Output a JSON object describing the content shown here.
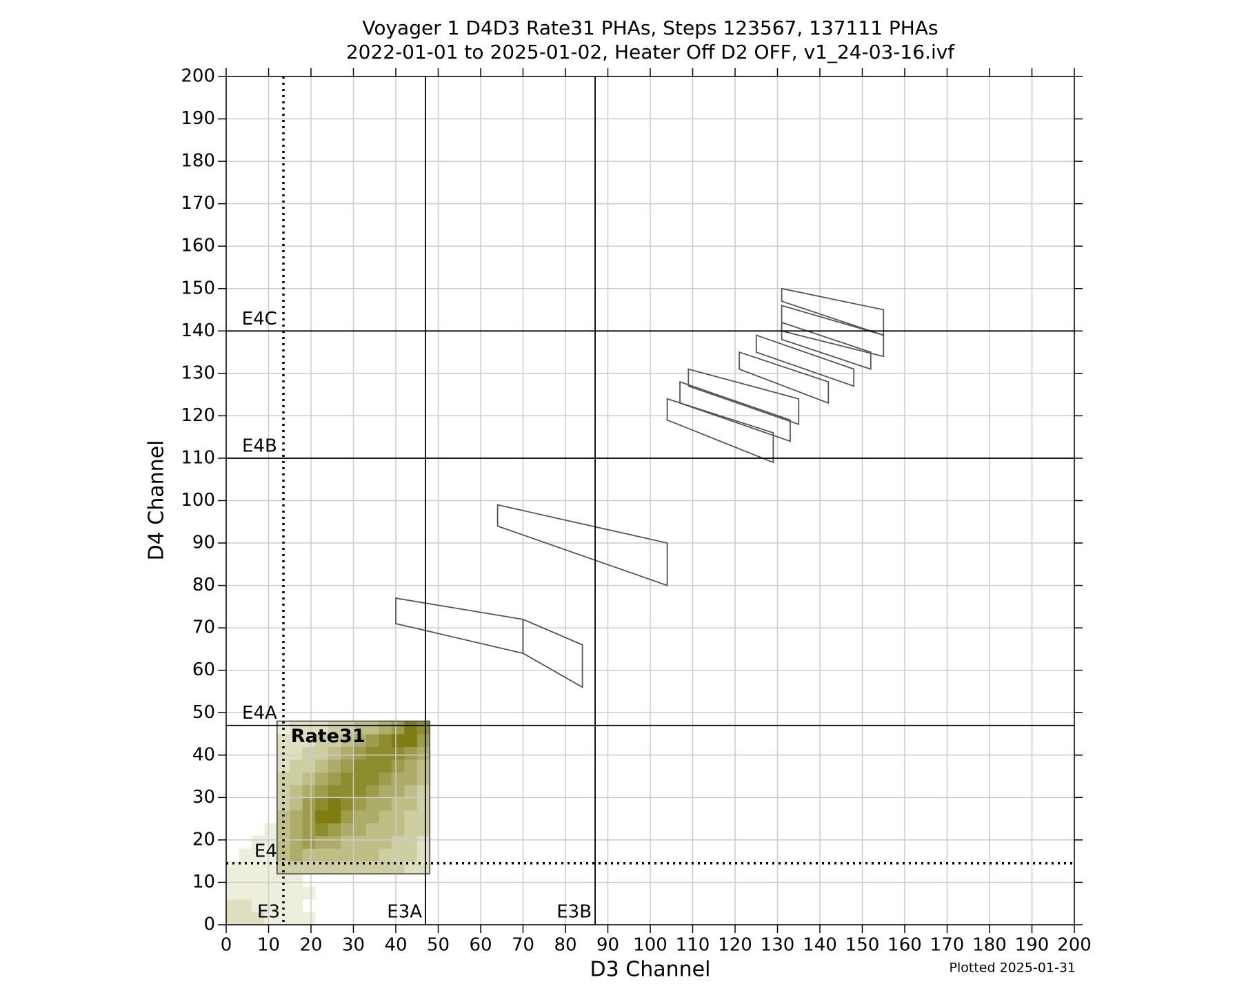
{
  "chart_data": {
    "type": "heatmap",
    "title": [
      "Voyager 1 D4D3 Rate31 PHAs, Steps 123567, 137111 PHAs",
      "2022-01-01 to 2025-01-02, Heater Off D2 OFF, v1_24-03-16.ivf"
    ],
    "x_label": "D3 Channel",
    "y_label": "D4 Channel",
    "footer": "Plotted 2025-01-31",
    "xlim": [
      0,
      200
    ],
    "ylim": [
      0,
      200
    ],
    "xticks": [
      0,
      10,
      20,
      30,
      40,
      50,
      60,
      70,
      80,
      90,
      100,
      110,
      120,
      130,
      140,
      150,
      160,
      170,
      180,
      190,
      200
    ],
    "yticks": [
      0,
      10,
      20,
      30,
      40,
      50,
      60,
      70,
      80,
      90,
      100,
      110,
      120,
      130,
      140,
      150,
      160,
      170,
      180,
      190,
      200
    ],
    "grid": true,
    "color_low": "#eeeedd",
    "color_high": "#7d7d12",
    "zlim": [
      0,
      8
    ],
    "x_bins": [
      0,
      3,
      6,
      9,
      12,
      15,
      18,
      21,
      24,
      27,
      30,
      33,
      36,
      39,
      42,
      45,
      48
    ],
    "y_bins": [
      0,
      3,
      6,
      9,
      12,
      15,
      18,
      21,
      24,
      27,
      30,
      33,
      36,
      39,
      42,
      45,
      48
    ],
    "counts": [
      [
        2,
        2,
        2,
        1,
        1,
        1,
        1,
        0,
        0,
        0,
        0,
        0,
        0,
        0,
        0,
        0
      ],
      [
        2,
        2,
        1,
        1,
        1,
        1,
        0,
        0,
        0,
        0,
        0,
        0,
        0,
        0,
        0,
        0
      ],
      [
        1,
        1,
        1,
        1,
        1,
        1,
        1,
        0,
        0,
        0,
        0,
        0,
        0,
        0,
        0,
        0
      ],
      [
        1,
        1,
        1,
        1,
        1,
        1,
        0,
        0,
        0,
        0,
        0,
        0,
        0,
        0,
        0,
        0
      ],
      [
        1,
        1,
        1,
        1,
        3,
        3,
        3,
        3,
        3,
        3,
        3,
        3,
        3,
        3,
        2,
        2
      ],
      [
        0,
        1,
        1,
        1,
        4,
        5,
        4,
        4,
        4,
        4,
        4,
        4,
        3,
        3,
        3,
        2
      ],
      [
        0,
        0,
        1,
        1,
        4,
        5,
        6,
        5,
        5,
        4,
        4,
        4,
        4,
        3,
        3,
        2
      ],
      [
        0,
        0,
        0,
        1,
        4,
        5,
        6,
        7,
        6,
        5,
        5,
        4,
        4,
        4,
        3,
        3
      ],
      [
        0,
        0,
        0,
        0,
        4,
        5,
        6,
        8,
        8,
        6,
        5,
        5,
        4,
        4,
        3,
        3
      ],
      [
        0,
        0,
        0,
        0,
        3,
        4,
        6,
        7,
        8,
        7,
        6,
        5,
        5,
        4,
        4,
        3
      ],
      [
        0,
        0,
        0,
        0,
        3,
        4,
        5,
        6,
        7,
        7,
        7,
        6,
        5,
        5,
        4,
        3
      ],
      [
        0,
        0,
        0,
        0,
        3,
        3,
        4,
        5,
        6,
        7,
        7,
        7,
        6,
        5,
        5,
        4
      ],
      [
        0,
        0,
        0,
        0,
        2,
        3,
        3,
        4,
        5,
        6,
        7,
        7,
        7,
        6,
        5,
        4
      ],
      [
        0,
        0,
        0,
        0,
        2,
        2,
        3,
        3,
        4,
        5,
        6,
        7,
        7,
        7,
        6,
        5
      ],
      [
        0,
        0,
        0,
        0,
        2,
        2,
        2,
        3,
        3,
        4,
        5,
        6,
        7,
        8,
        8,
        6
      ],
      [
        0,
        0,
        0,
        0,
        1,
        2,
        2,
        2,
        3,
        3,
        4,
        4,
        5,
        6,
        8,
        7
      ]
    ],
    "thresholds": [
      {
        "label": "E3",
        "axis": "x",
        "value": 13.5,
        "style": "dotted"
      },
      {
        "label": "E3A",
        "axis": "x",
        "value": 47,
        "style": "solid"
      },
      {
        "label": "E3B",
        "axis": "x",
        "value": 87,
        "style": "solid"
      },
      {
        "label": "E4",
        "axis": "y",
        "value": 14.5,
        "style": "dotted"
      },
      {
        "label": "E4A",
        "axis": "y",
        "value": 47,
        "style": "solid"
      },
      {
        "label": "E4B",
        "axis": "y",
        "value": 110,
        "style": "solid"
      },
      {
        "label": "E4C",
        "axis": "y",
        "value": 140,
        "style": "solid"
      }
    ],
    "rate_box": {
      "label": "Rate31",
      "x": [
        12,
        48
      ],
      "y": [
        12,
        48
      ]
    },
    "regions": [
      {
        "x": [
          40,
          70,
          70,
          40
        ],
        "y": [
          77,
          72,
          64,
          71
        ]
      },
      {
        "x": [
          70,
          84,
          84,
          70
        ],
        "y": [
          72,
          66,
          56,
          64
        ]
      },
      {
        "x": [
          64,
          104,
          104,
          64
        ],
        "y": [
          99,
          90,
          80,
          94
        ]
      },
      {
        "x": [
          104,
          129,
          129,
          104
        ],
        "y": [
          124,
          116,
          109,
          119
        ]
      },
      {
        "x": [
          107,
          133,
          133,
          107
        ],
        "y": [
          128,
          119,
          114,
          123
        ]
      },
      {
        "x": [
          109,
          135,
          135,
          109
        ],
        "y": [
          131,
          124,
          118,
          127
        ]
      },
      {
        "x": [
          121,
          142,
          142,
          121
        ],
        "y": [
          135,
          128,
          123,
          131
        ]
      },
      {
        "x": [
          125,
          148,
          148,
          125
        ],
        "y": [
          139,
          131,
          127,
          135
        ]
      },
      {
        "x": [
          131,
          152,
          152,
          131
        ],
        "y": [
          142,
          135,
          131,
          138
        ]
      },
      {
        "x": [
          131,
          155,
          155,
          131
        ],
        "y": [
          146,
          139,
          134,
          140
        ]
      },
      {
        "x": [
          131,
          155,
          155,
          131
        ],
        "y": [
          150,
          145,
          139,
          147
        ]
      }
    ]
  }
}
